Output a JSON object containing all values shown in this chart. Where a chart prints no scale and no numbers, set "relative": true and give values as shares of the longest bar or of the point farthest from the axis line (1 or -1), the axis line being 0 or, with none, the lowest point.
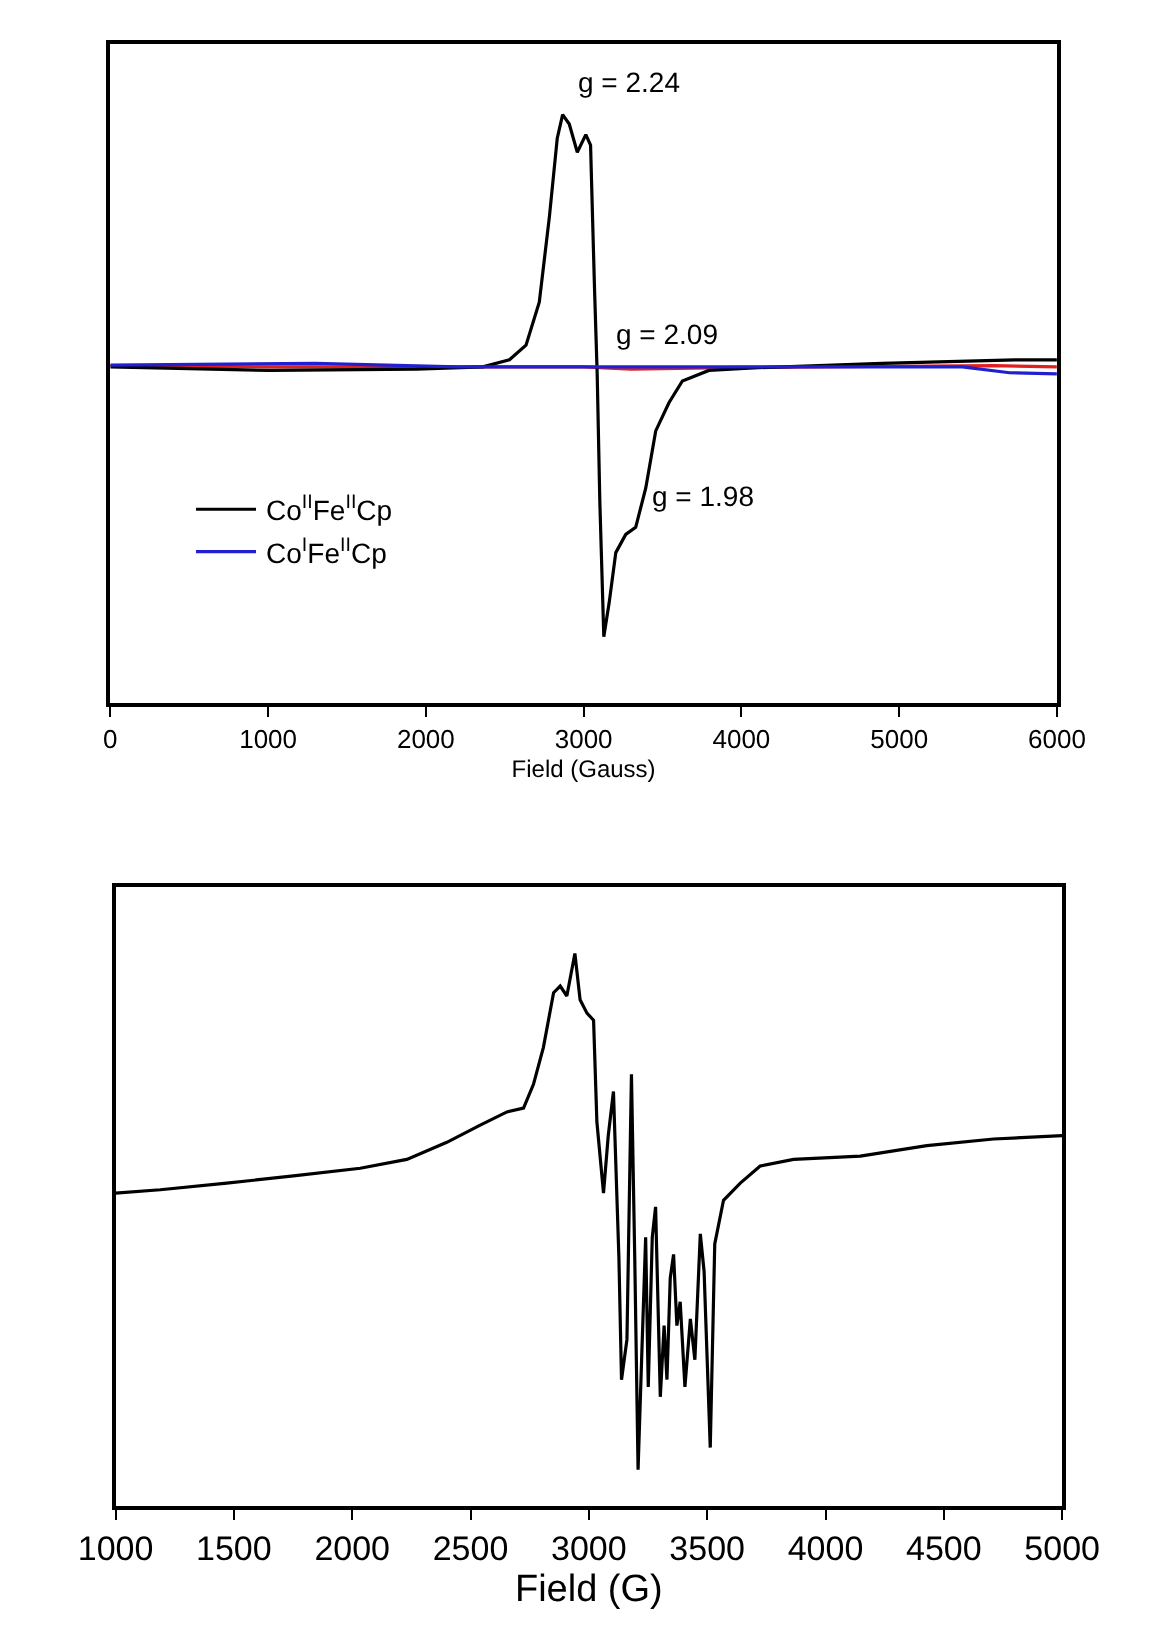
{
  "chart_data": [
    {
      "type": "line",
      "relative": true,
      "xlabel": "Field (Gauss)",
      "xlim": [
        0,
        6000
      ],
      "xticks": [
        0,
        1000,
        2000,
        3000,
        4000,
        5000,
        6000
      ],
      "legend": "bottom left",
      "marker": "none",
      "line_style": "solid",
      "annotations": [
        {
          "text": "g = 2.24",
          "x": 2867,
          "y": 1.0
        },
        {
          "text": "g = 2.09",
          "x": 3100,
          "y": 0.571
        },
        {
          "text": "g = 1.98",
          "x": 3330,
          "y": 0.298
        }
      ],
      "series": [
        {
          "color": "#e02020",
          "x": [
            0,
            1000,
            2000,
            3000,
            3300,
            4000,
            5000,
            5600,
            6000
          ],
          "values": [
            0.573,
            0.571,
            0.571,
            0.571,
            0.567,
            0.57,
            0.572,
            0.573,
            0.571
          ]
        },
        {
          "name": "Co$^{II}$Fe$^{II}$Cp",
          "color": "#000000",
          "x": [
            0,
            1012,
            1939,
            2361,
            2530,
            2635,
            2719,
            2783,
            2833,
            2867,
            2909,
            2960,
            3014,
            3044,
            3069,
            3086,
            3103,
            3128,
            3162,
            3204,
            3267,
            3330,
            3394,
            3457,
            3541,
            3626,
            3794,
            4047,
            4891,
            5734,
            6000
          ],
          "values": [
            0.571,
            0.565,
            0.567,
            0.571,
            0.583,
            0.608,
            0.681,
            0.826,
            0.96,
            1.0,
            0.984,
            0.936,
            0.966,
            0.948,
            0.705,
            0.559,
            0.34,
            0.112,
            0.17,
            0.255,
            0.286,
            0.298,
            0.365,
            0.462,
            0.51,
            0.547,
            0.565,
            0.569,
            0.577,
            0.583,
            0.583
          ]
        },
        {
          "name": "Co$^{I}$Fe$^{II}$Cp",
          "color": "#2020d0",
          "x": [
            0,
            1300,
            2200,
            3000,
            3500,
            4500,
            5400,
            5700,
            6000
          ],
          "values": [
            0.574,
            0.577,
            0.571,
            0.571,
            0.571,
            0.571,
            0.571,
            0.561,
            0.559
          ]
        }
      ]
    },
    {
      "type": "line",
      "relative": true,
      "xlabel": "Field (G)",
      "xlim": [
        1000,
        5000
      ],
      "xticks": [
        1000,
        1500,
        2000,
        2500,
        3000,
        3500,
        4000,
        4500,
        5000
      ],
      "marker": "none",
      "line_style": "solid",
      "series": [
        {
          "color": "#000000",
          "x": [
            1000,
            1189,
            1470,
            1752,
            2034,
            2231,
            2400,
            2541,
            2654,
            2724,
            2766,
            2808,
            2851,
            2879,
            2907,
            2941,
            2963,
            2992,
            3020,
            3034,
            3062,
            3082,
            3104,
            3127,
            3138,
            3161,
            3180,
            3194,
            3208,
            3223,
            3240,
            3251,
            3268,
            3282,
            3302,
            3318,
            3330,
            3344,
            3358,
            3372,
            3386,
            3406,
            3429,
            3448,
            3471,
            3487,
            3513,
            3532,
            3569,
            3640,
            3724,
            3865,
            4147,
            4428,
            4710,
            5000
          ],
          "values": [
            0.566,
            0.572,
            0.584,
            0.597,
            0.611,
            0.627,
            0.658,
            0.689,
            0.713,
            0.72,
            0.763,
            0.83,
            0.929,
            0.941,
            0.923,
            1.0,
            0.916,
            0.892,
            0.879,
            0.695,
            0.566,
            0.67,
            0.75,
            0.449,
            0.228,
            0.301,
            0.781,
            0.449,
            0.065,
            0.264,
            0.486,
            0.215,
            0.486,
            0.541,
            0.197,
            0.326,
            0.228,
            0.412,
            0.455,
            0.326,
            0.369,
            0.215,
            0.338,
            0.264,
            0.492,
            0.424,
            0.105,
            0.474,
            0.553,
            0.584,
            0.615,
            0.627,
            0.633,
            0.652,
            0.664,
            0.67
          ]
        }
      ]
    }
  ]
}
